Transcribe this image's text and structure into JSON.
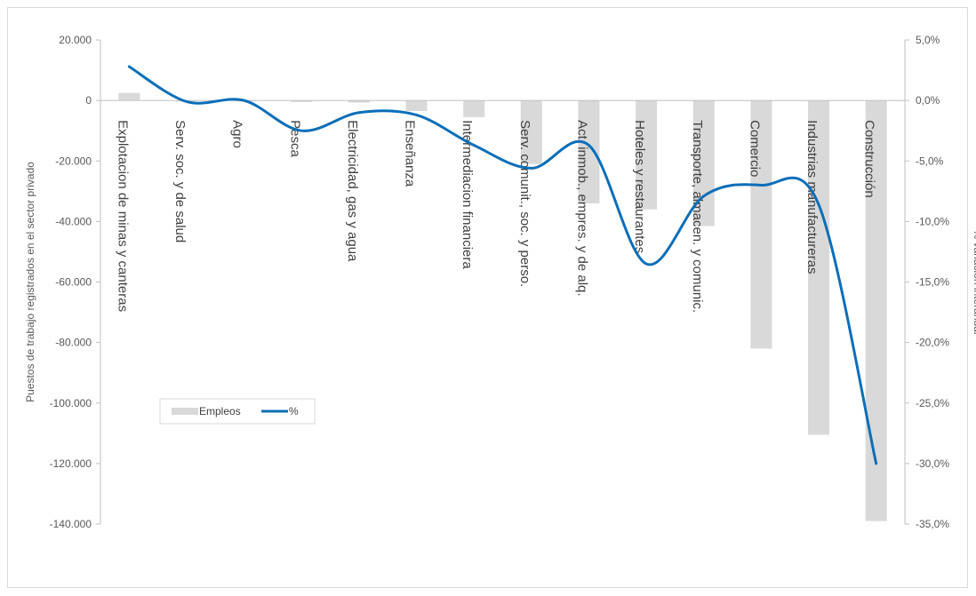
{
  "chart_data": {
    "type": "bar-line-combo",
    "categories": [
      "Explotacion de minas y canteras",
      "Serv. soc. y de salud",
      "Agro",
      "Pesca",
      "Electricidad, gas y agua",
      "Enseñanza",
      "Intermediacion financiera",
      "Serv. comunit., soc. y perso.",
      "Act. inmob., empres. y de alq.",
      "Hoteles y restaurantes",
      "Transporte, almacen. y comunic.",
      "Comercio",
      "Industrias manufactureras",
      "Construcción"
    ],
    "series": [
      {
        "name": "Empleos",
        "type": "bar",
        "axis": "left",
        "color": "#d9d9d9",
        "values": [
          2500,
          -200,
          -300,
          -500,
          -700,
          -3500,
          -5500,
          -21000,
          -34000,
          -36000,
          -41500,
          -82000,
          -110500,
          -139000
        ]
      },
      {
        "name": "%",
        "type": "line",
        "axis": "right",
        "color": "#0b6eb8",
        "values": [
          2.8,
          -0.1,
          0.0,
          -2.5,
          -1.0,
          -1.2,
          -3.7,
          -5.6,
          -3.7,
          -13.5,
          -7.9,
          -7.0,
          -8.6,
          -30.0
        ]
      }
    ],
    "ylabel": "Puestos de trabajo registrados en el sector privado",
    "y2label": "% variación interanual",
    "ylim": [
      -140000,
      20000
    ],
    "y2lim": [
      -35,
      5
    ],
    "yticks": [
      "20.000",
      "0",
      "-20.000",
      "-40.000",
      "-60.000",
      "-80.000",
      "-100.000",
      "-120.000",
      "-140.000"
    ],
    "y2ticks": [
      "5,0%",
      "0,0%",
      "-5,0%",
      "-10,0%",
      "-15,0%",
      "-20,0%",
      "-25,0%",
      "-30,0%",
      "-35,0%"
    ],
    "legend": {
      "placement": "lower-left",
      "entries": [
        "Empleos",
        "%"
      ]
    },
    "grid": false
  }
}
